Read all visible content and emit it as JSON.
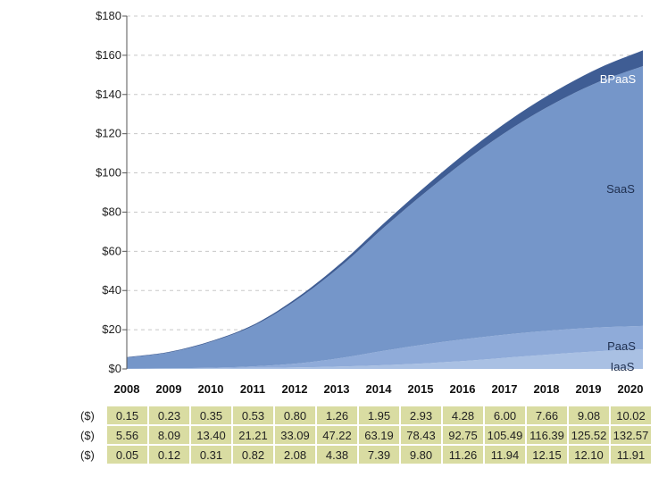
{
  "chart_data": {
    "type": "area",
    "stacked": true,
    "title": "",
    "xlabel": "",
    "ylabel": "",
    "x": [
      "2008",
      "2009",
      "2010",
      "2011",
      "2012",
      "2013",
      "2014",
      "2015",
      "2016",
      "2017",
      "2018",
      "2019",
      "2020"
    ],
    "ylim": [
      0,
      180
    ],
    "yticks": [
      0,
      20,
      40,
      60,
      80,
      100,
      120,
      140,
      160,
      180
    ],
    "ytick_labels": [
      "$0",
      "$20",
      "$40",
      "$60",
      "$80",
      "$100",
      "$120",
      "$140",
      "$160",
      "$180"
    ],
    "grid": "horizontal dashed",
    "series": [
      {
        "name": "IaaS",
        "color": "#a9c0e3",
        "values": [
          0.15,
          0.23,
          0.35,
          0.53,
          0.8,
          1.26,
          1.95,
          2.93,
          4.28,
          6.0,
          7.66,
          9.08,
          10.02
        ]
      },
      {
        "name": "PaaS",
        "color": "#8fabd9",
        "values": [
          0.05,
          0.12,
          0.31,
          0.82,
          2.08,
          4.38,
          7.39,
          9.8,
          11.26,
          11.94,
          12.15,
          12.1,
          11.91
        ]
      },
      {
        "name": "SaaS",
        "color": "#7596c9",
        "values": [
          5.56,
          8.09,
          13.4,
          21.21,
          33.09,
          47.22,
          63.19,
          78.43,
          92.75,
          105.49,
          116.39,
          125.52,
          132.57
        ]
      },
      {
        "name": "BPaaS",
        "color": "#3f5d94",
        "values": [
          0.2,
          0.3,
          0.4,
          0.6,
          1.0,
          1.5,
          2.2,
          3.0,
          4.0,
          5.0,
          6.0,
          7.0,
          8.0
        ]
      }
    ],
    "table": {
      "unit_label": "($)",
      "rows": [
        [
          "0.15",
          "0.23",
          "0.35",
          "0.53",
          "0.80",
          "1.26",
          "1.95",
          "2.93",
          "4.28",
          "6.00",
          "7.66",
          "9.08",
          "10.02"
        ],
        [
          "5.56",
          "8.09",
          "13.40",
          "21.21",
          "33.09",
          "47.22",
          "63.19",
          "78.43",
          "92.75",
          "105.49",
          "116.39",
          "125.52",
          "132.57"
        ],
        [
          "0.05",
          "0.12",
          "0.31",
          "0.82",
          "2.08",
          "4.38",
          "7.39",
          "9.80",
          "11.26",
          "11.94",
          "12.15",
          "12.10",
          "11.91"
        ]
      ]
    }
  }
}
